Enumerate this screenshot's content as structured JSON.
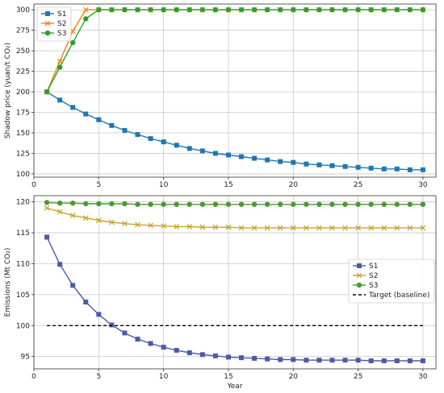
{
  "chart_data": [
    {
      "type": "line",
      "ylabel": "Shadow price (yuan/t CO₂)",
      "xlabel": "",
      "xlim": [
        0,
        31
      ],
      "ylim": [
        96,
        307
      ],
      "xticks": [
        0,
        5,
        10,
        15,
        20,
        25,
        30
      ],
      "yticks": [
        100,
        125,
        150,
        175,
        200,
        225,
        250,
        275,
        300
      ],
      "grid": true,
      "legend_position": "upper-left",
      "x": [
        1,
        2,
        3,
        4,
        5,
        6,
        7,
        8,
        9,
        10,
        11,
        12,
        13,
        14,
        15,
        16,
        17,
        18,
        19,
        20,
        21,
        22,
        23,
        24,
        25,
        26,
        27,
        28,
        29,
        30
      ],
      "series": [
        {
          "name": "S1",
          "color": "#1f77b4",
          "marker": "square",
          "values": [
            200,
            190,
            181,
            173,
            166,
            159,
            153,
            148,
            143,
            139,
            135,
            131,
            128,
            125,
            123,
            121,
            119,
            117,
            115,
            114,
            112,
            111,
            110,
            109,
            108,
            107,
            106,
            106,
            105,
            105
          ]
        },
        {
          "name": "S2",
          "color": "#ff7f0e",
          "marker": "x",
          "values": [
            200,
            237,
            274,
            300,
            300,
            300,
            300,
            300,
            300,
            300,
            300,
            300,
            300,
            300,
            300,
            300,
            300,
            300,
            300,
            300,
            300,
            300,
            300,
            300,
            300,
            300,
            300,
            300,
            300,
            300
          ]
        },
        {
          "name": "S3",
          "color": "#2ca02c",
          "marker": "circle",
          "values": [
            200,
            230,
            260,
            289,
            300,
            300,
            300,
            300,
            300,
            300,
            300,
            300,
            300,
            300,
            300,
            300,
            300,
            300,
            300,
            300,
            300,
            300,
            300,
            300,
            300,
            300,
            300,
            300,
            300,
            300
          ]
        }
      ]
    },
    {
      "type": "line",
      "ylabel": "Emissions (Mt CO₂)",
      "xlabel": "Year",
      "xlim": [
        0,
        31
      ],
      "ylim": [
        93,
        121
      ],
      "xticks": [
        0,
        5,
        10,
        15,
        20,
        25,
        30
      ],
      "yticks": [
        95,
        100,
        105,
        110,
        115,
        120
      ],
      "grid": true,
      "legend_position": "center-right",
      "x": [
        1,
        2,
        3,
        4,
        5,
        6,
        7,
        8,
        9,
        10,
        11,
        12,
        13,
        14,
        15,
        16,
        17,
        18,
        19,
        20,
        21,
        22,
        23,
        24,
        25,
        26,
        27,
        28,
        29,
        30
      ],
      "series": [
        {
          "name": "S1",
          "color": "#4c5aa8",
          "marker": "square",
          "values": [
            114.3,
            109.9,
            106.5,
            103.8,
            101.8,
            100.1,
            98.8,
            97.8,
            97.1,
            96.5,
            96.0,
            95.6,
            95.3,
            95.1,
            94.9,
            94.8,
            94.7,
            94.6,
            94.5,
            94.5,
            94.4,
            94.4,
            94.4,
            94.4,
            94.4,
            94.3,
            94.3,
            94.3,
            94.3,
            94.3
          ]
        },
        {
          "name": "S2",
          "color": "#c9a227",
          "marker": "x",
          "values": [
            119.0,
            118.4,
            117.8,
            117.4,
            117.0,
            116.7,
            116.5,
            116.3,
            116.2,
            116.1,
            116.0,
            116.0,
            115.9,
            115.9,
            115.9,
            115.8,
            115.8,
            115.8,
            115.8,
            115.8,
            115.8,
            115.8,
            115.8,
            115.8,
            115.8,
            115.8,
            115.8,
            115.8,
            115.8,
            115.8
          ]
        },
        {
          "name": "S3",
          "color": "#4a9a32",
          "marker": "circle",
          "values": [
            119.9,
            119.8,
            119.8,
            119.7,
            119.7,
            119.7,
            119.7,
            119.6,
            119.6,
            119.6,
            119.6,
            119.6,
            119.6,
            119.6,
            119.6,
            119.6,
            119.6,
            119.6,
            119.6,
            119.6,
            119.6,
            119.6,
            119.6,
            119.6,
            119.6,
            119.6,
            119.6,
            119.6,
            119.6,
            119.6
          ]
        },
        {
          "name": "Target (baseline)",
          "color": "#000000",
          "marker": "none",
          "dashed": true,
          "x": [
            1,
            30
          ],
          "values": [
            100,
            100
          ]
        }
      ]
    }
  ]
}
